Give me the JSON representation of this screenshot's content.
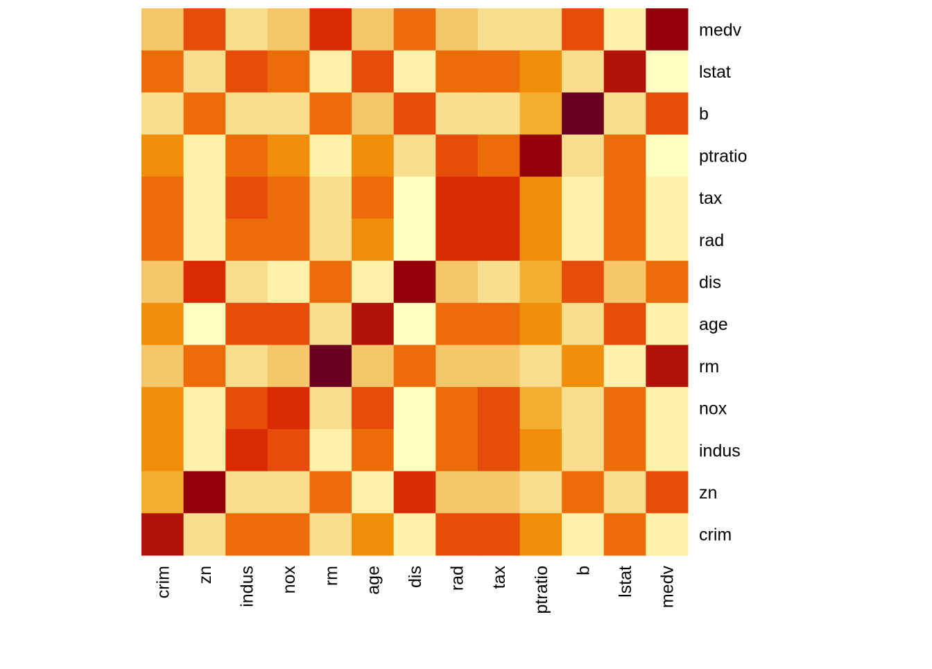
{
  "chart_data": {
    "type": "heatmap",
    "title": "",
    "xlabel": "",
    "ylabel": "",
    "x_labels": [
      "crim",
      "zn",
      "indus",
      "nox",
      "rm",
      "age",
      "dis",
      "rad",
      "tax",
      "ptratio",
      "b",
      "lstat",
      "medv"
    ],
    "y_labels_top_to_bottom": [
      "medv",
      "lstat",
      "b",
      "ptratio",
      "tax",
      "rad",
      "dis",
      "age",
      "rm",
      "nox",
      "indus",
      "zn",
      "crim"
    ],
    "value_note": "color level index, 0 = darkest (highest) to 11 = lightest (lowest)",
    "palette": [
      "#6A0020",
      "#940008",
      "#B31208",
      "#D92A04",
      "#E64C0A",
      "#EC6C0A",
      "#F08E0A",
      "#F2AE30",
      "#F5C76A",
      "#F7DE8E",
      "#FDF0A8",
      "#FFFFC0"
    ],
    "levels": [
      [
        8,
        4,
        9,
        8,
        3,
        8,
        5,
        8,
        9,
        9,
        4,
        10,
        1
      ],
      [
        5,
        9,
        4,
        5,
        10,
        4,
        10,
        5,
        5,
        6,
        9,
        2,
        11
      ],
      [
        9,
        5,
        9,
        9,
        5,
        8,
        4,
        9,
        9,
        7,
        0,
        9,
        4
      ],
      [
        6,
        10,
        5,
        6,
        10,
        6,
        9,
        4,
        5,
        1,
        9,
        5,
        11
      ],
      [
        5,
        10,
        4,
        5,
        9,
        5,
        11,
        3,
        3,
        6,
        10,
        5,
        10
      ],
      [
        5,
        10,
        5,
        5,
        9,
        6,
        11,
        3,
        3,
        6,
        10,
        5,
        10
      ],
      [
        8,
        3,
        9,
        10,
        5,
        10,
        1,
        8,
        9,
        7,
        4,
        8,
        5
      ],
      [
        6,
        11,
        4,
        4,
        9,
        2,
        11,
        5,
        5,
        6,
        9,
        4,
        10
      ],
      [
        8,
        5,
        9,
        8,
        0,
        8,
        5,
        8,
        8,
        9,
        6,
        10,
        2
      ],
      [
        6,
        10,
        4,
        3,
        9,
        4,
        11,
        5,
        4,
        7,
        9,
        5,
        10
      ],
      [
        6,
        10,
        3,
        4,
        10,
        5,
        11,
        5,
        4,
        6,
        9,
        5,
        10
      ],
      [
        7,
        1,
        9,
        9,
        5,
        10,
        3,
        8,
        8,
        9,
        5,
        9,
        4
      ],
      [
        2,
        9,
        5,
        5,
        9,
        6,
        10,
        4,
        4,
        6,
        10,
        5,
        10
      ]
    ]
  }
}
